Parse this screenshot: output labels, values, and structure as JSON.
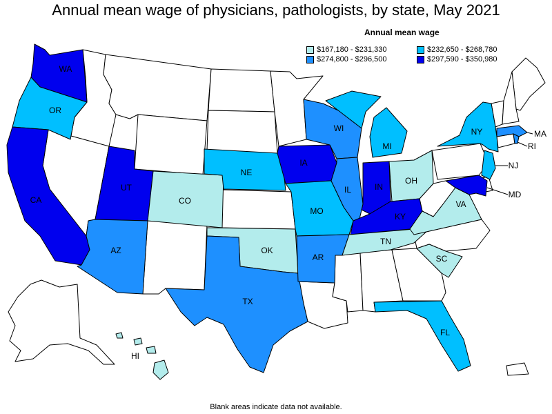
{
  "title": "Annual mean wage of physicians, pathologists, by state, May 2021",
  "legend": {
    "title": "Annual mean wage",
    "items": [
      {
        "label": "$167,180 - $231,330",
        "color": "#b3ecec"
      },
      {
        "label": "$232,650 - $268,780",
        "color": "#00bfff"
      },
      {
        "label": "$274,800 - $296,500",
        "color": "#1e90ff"
      },
      {
        "label": "$297,590 - $350,980",
        "color": "#0000ee"
      }
    ]
  },
  "note": "Blank areas indicate data not available.",
  "colors": {
    "no_data": "#ffffff",
    "tier1": "#b3ecec",
    "tier2": "#00bfff",
    "tier3": "#1e90ff",
    "tier4": "#0000ee"
  },
  "states": {
    "WA": {
      "label": "WA",
      "tier": 4
    },
    "OR": {
      "label": "OR",
      "tier": 2
    },
    "CA": {
      "label": "CA",
      "tier": 4
    },
    "UT": {
      "label": "UT",
      "tier": 4
    },
    "CO": {
      "label": "CO",
      "tier": 1
    },
    "AZ": {
      "label": "AZ",
      "tier": 3
    },
    "NE": {
      "label": "NE",
      "tier": 2
    },
    "OK": {
      "label": "OK",
      "tier": 1
    },
    "TX": {
      "label": "TX",
      "tier": 3
    },
    "IA": {
      "label": "IA",
      "tier": 4
    },
    "MO": {
      "label": "MO",
      "tier": 2
    },
    "AR": {
      "label": "AR",
      "tier": 3
    },
    "WI": {
      "label": "WI",
      "tier": 3
    },
    "IL": {
      "label": "IL",
      "tier": 3
    },
    "MI": {
      "label": "MI",
      "tier": 2
    },
    "IN": {
      "label": "IN",
      "tier": 4
    },
    "OH": {
      "label": "OH",
      "tier": 1
    },
    "KY": {
      "label": "KY",
      "tier": 4
    },
    "TN": {
      "label": "TN",
      "tier": 1
    },
    "VA": {
      "label": "VA",
      "tier": 1
    },
    "SC": {
      "label": "SC",
      "tier": 1
    },
    "FL": {
      "label": "FL",
      "tier": 2
    },
    "NY": {
      "label": "NY",
      "tier": 2
    },
    "NJ": {
      "label": "NJ",
      "tier": 2
    },
    "MD": {
      "label": "MD",
      "tier": 4
    },
    "MA": {
      "label": "MA",
      "tier": 3
    },
    "RI": {
      "label": "RI",
      "tier": 3
    },
    "HI": {
      "label": "HI",
      "tier": 1
    }
  }
}
